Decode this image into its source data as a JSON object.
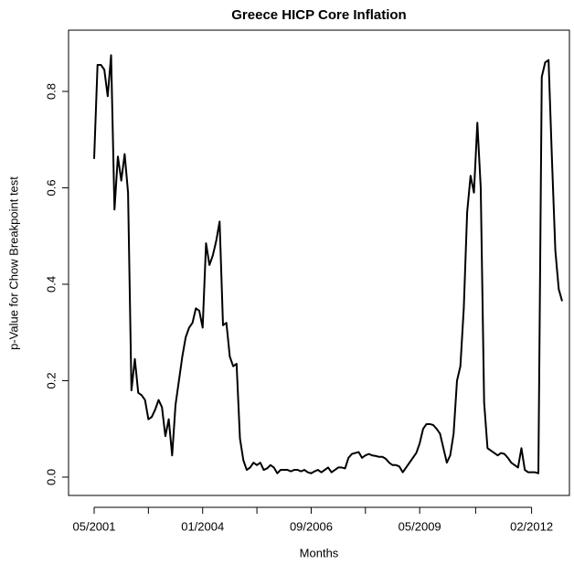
{
  "chart_data": {
    "type": "line",
    "title": "Greece HICP Core Inflation",
    "x_label": "Months",
    "y_label": "p-Value for Chow Breakpoint test",
    "categories": [
      "05/2001",
      "06/2001",
      "07/2001",
      "08/2001",
      "09/2001",
      "10/2001",
      "11/2001",
      "12/2001",
      "01/2002",
      "02/2002",
      "03/2002",
      "04/2002",
      "05/2002",
      "06/2002",
      "07/2002",
      "08/2002",
      "09/2002",
      "10/2002",
      "11/2002",
      "12/2002",
      "01/2003",
      "02/2003",
      "03/2003",
      "04/2003",
      "05/2003",
      "06/2003",
      "07/2003",
      "08/2003",
      "09/2003",
      "10/2003",
      "11/2003",
      "12/2003",
      "01/2004",
      "02/2004",
      "03/2004",
      "04/2004",
      "05/2004",
      "06/2004",
      "07/2004",
      "08/2004",
      "09/2004",
      "10/2004",
      "11/2004",
      "12/2004",
      "01/2005",
      "02/2005",
      "03/2005",
      "04/2005",
      "05/2005",
      "06/2005",
      "07/2005",
      "08/2005",
      "09/2005",
      "10/2005",
      "11/2005",
      "12/2005",
      "01/2006",
      "02/2006",
      "03/2006",
      "04/2006",
      "05/2006",
      "06/2006",
      "07/2006",
      "08/2006",
      "09/2006",
      "10/2006",
      "11/2006",
      "12/2006",
      "01/2007",
      "02/2007",
      "03/2007",
      "04/2007",
      "05/2007",
      "06/2007",
      "07/2007",
      "08/2007",
      "09/2007",
      "10/2007",
      "11/2007",
      "12/2007",
      "01/2008",
      "02/2008",
      "03/2008",
      "04/2008",
      "05/2008",
      "06/2008",
      "07/2008",
      "08/2008",
      "09/2008",
      "10/2008",
      "11/2008",
      "12/2008",
      "01/2009",
      "02/2009",
      "03/2009",
      "04/2009",
      "05/2009",
      "06/2009",
      "07/2009",
      "08/2009",
      "09/2009",
      "10/2009",
      "11/2009",
      "12/2009",
      "01/2010",
      "02/2010",
      "03/2010",
      "04/2010",
      "05/2010",
      "06/2010",
      "07/2010",
      "08/2010",
      "09/2010",
      "10/2010",
      "11/2010",
      "12/2010",
      "01/2011",
      "02/2011",
      "03/2011",
      "04/2011",
      "05/2011",
      "06/2011",
      "07/2011",
      "08/2011",
      "09/2011",
      "10/2011",
      "11/2011",
      "12/2011",
      "01/2012",
      "02/2012",
      "03/2012",
      "04/2012",
      "05/2012",
      "06/2012",
      "07/2012",
      "08/2012",
      "09/2012",
      "10/2012",
      "11/2012"
    ],
    "series": [
      {
        "name": "p-Value",
        "color": "#000000",
        "values": [
          0.66,
          0.855,
          0.855,
          0.845,
          0.79,
          0.875,
          0.555,
          0.665,
          0.615,
          0.67,
          0.59,
          0.18,
          0.245,
          0.175,
          0.17,
          0.16,
          0.12,
          0.125,
          0.14,
          0.16,
          0.145,
          0.085,
          0.12,
          0.045,
          0.15,
          0.2,
          0.25,
          0.29,
          0.31,
          0.32,
          0.35,
          0.345,
          0.31,
          0.485,
          0.44,
          0.46,
          0.49,
          0.53,
          0.315,
          0.32,
          0.25,
          0.23,
          0.235,
          0.08,
          0.035,
          0.015,
          0.02,
          0.03,
          0.025,
          0.03,
          0.015,
          0.018,
          0.025,
          0.02,
          0.008,
          0.015,
          0.015,
          0.015,
          0.012,
          0.015,
          0.015,
          0.012,
          0.015,
          0.01,
          0.008,
          0.012,
          0.015,
          0.01,
          0.015,
          0.02,
          0.01,
          0.015,
          0.02,
          0.02,
          0.018,
          0.04,
          0.048,
          0.05,
          0.052,
          0.04,
          0.045,
          0.048,
          0.045,
          0.044,
          0.042,
          0.042,
          0.038,
          0.03,
          0.025,
          0.025,
          0.022,
          0.01,
          0.02,
          0.03,
          0.04,
          0.05,
          0.07,
          0.1,
          0.11,
          0.11,
          0.108,
          0.1,
          0.09,
          0.06,
          0.03,
          0.045,
          0.09,
          0.2,
          0.23,
          0.35,
          0.55,
          0.625,
          0.59,
          0.735,
          0.6,
          0.155,
          0.06,
          0.055,
          0.05,
          0.045,
          0.05,
          0.048,
          0.04,
          0.03,
          0.025,
          0.02,
          0.06,
          0.015,
          0.01,
          0.01,
          0.01,
          0.008,
          0.83,
          0.86,
          0.865,
          0.66,
          0.47,
          0.39,
          0.365
        ]
      }
    ],
    "xticks": [
      "05/2001",
      "01/2004",
      "09/2006",
      "05/2009",
      "02/2012"
    ],
    "ylim": [
      -0.038,
      0.927
    ],
    "yticks": [
      {
        "value": 0,
        "label": "0.0"
      },
      0.2,
      0.4,
      0.6,
      0.8
    ]
  }
}
